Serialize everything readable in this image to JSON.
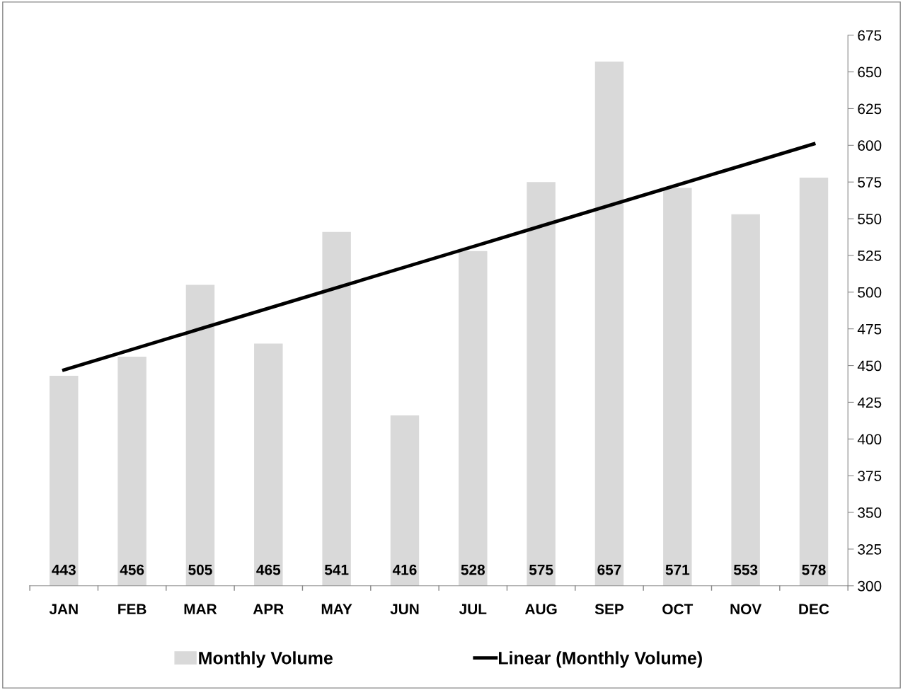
{
  "chart_data": {
    "type": "bar",
    "categories": [
      "JAN",
      "FEB",
      "MAR",
      "APR",
      "MAY",
      "JUN",
      "JUL",
      "AUG",
      "SEP",
      "OCT",
      "NOV",
      "DEC"
    ],
    "series": [
      {
        "name": "Monthly Volume",
        "color": "#d9d9d9",
        "values": [
          443,
          456,
          505,
          465,
          541,
          416,
          528,
          575,
          657,
          571,
          553,
          578
        ],
        "value_labels": [
          "443",
          "456",
          "505",
          "465",
          "541",
          "416",
          "528",
          "575",
          "657",
          "571",
          "553",
          "578"
        ]
      },
      {
        "name": "Linear (Monthly Volume)",
        "type": "line",
        "color": "#000000",
        "values": [
          447,
          461,
          475,
          489,
          503,
          517,
          531,
          545,
          559,
          573,
          587,
          601
        ]
      }
    ],
    "ylim": [
      300,
      675
    ],
    "yticks": [
      300,
      325,
      350,
      375,
      400,
      425,
      450,
      475,
      500,
      525,
      550,
      575,
      600,
      625,
      650,
      675
    ],
    "grid": false,
    "legend": "bottom",
    "marker": "none",
    "line_style": "solid"
  }
}
